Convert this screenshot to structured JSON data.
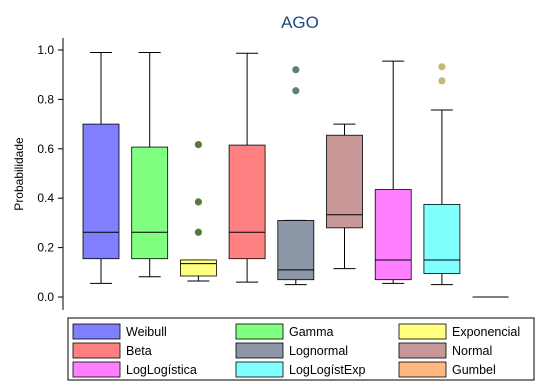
{
  "chart_data": {
    "type": "box",
    "title": "AGO",
    "ylabel": "Probabilidade",
    "xlabel": "",
    "ylim": [
      0,
      1.08
    ],
    "yticks": [
      "0.0",
      "0.2",
      "0.4",
      "0.6",
      "0.8",
      "1.0"
    ],
    "yticks_values": [
      0,
      0.2,
      0.4,
      0.6,
      0.8,
      1.0
    ],
    "grid": false,
    "legend_position": "bottom",
    "series": [
      {
        "name": "Weibull",
        "color": "#8080ff",
        "min": 0.055,
        "q1": 0.155,
        "median": 0.262,
        "q3": 0.7,
        "max": 0.99,
        "outliers": []
      },
      {
        "name": "Gamma",
        "color": "#80ff80",
        "min": 0.082,
        "q1": 0.155,
        "median": 0.262,
        "q3": 0.607,
        "max": 0.99,
        "outliers": []
      },
      {
        "name": "Exponencial",
        "color": "#ffff80",
        "min": 0.065,
        "q1": 0.085,
        "median": 0.135,
        "q3": 0.15,
        "max": 0.15,
        "outliers": [
          0.262,
          0.385,
          0.617
        ]
      },
      {
        "name": "Beta",
        "color": "#ff8080",
        "min": 0.06,
        "q1": 0.155,
        "median": 0.262,
        "q3": 0.615,
        "max": 0.987,
        "outliers": []
      },
      {
        "name": "Lognormal",
        "color": "#8c96a6",
        "min": 0.05,
        "q1": 0.07,
        "median": 0.11,
        "q3": 0.31,
        "max": 0.31,
        "outliers": [
          0.835,
          0.92
        ]
      },
      {
        "name": "Normal",
        "color": "#c89898",
        "min": 0.115,
        "q1": 0.28,
        "median": 0.333,
        "q3": 0.655,
        "max": 0.7,
        "outliers": []
      },
      {
        "name": "LogLogística",
        "color": "#ff80ff",
        "min": 0.055,
        "q1": 0.07,
        "median": 0.15,
        "q3": 0.435,
        "max": 0.955,
        "outliers": []
      },
      {
        "name": "LogLogístExp",
        "color": "#80ffff",
        "min": 0.05,
        "q1": 0.095,
        "median": 0.15,
        "q3": 0.375,
        "max": 0.757,
        "outliers": [
          0.875,
          0.932
        ]
      },
      {
        "name": "Gumbel",
        "color": "#ffb880",
        "min": 0.0,
        "q1": 0.0,
        "median": 0.0,
        "q3": 0.0,
        "max": 0.0,
        "outliers": []
      }
    ],
    "outlier_colors": {
      "Exponencial": "#5a7a3a",
      "Lognormal": "#5f7f7f",
      "LogLogístExp": "#c8b878"
    }
  }
}
